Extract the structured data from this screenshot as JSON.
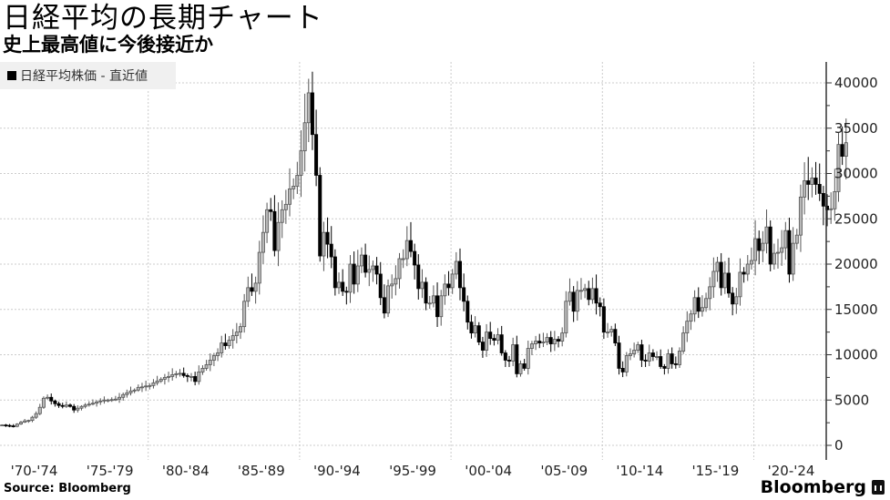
{
  "header": {
    "title": "日経平均の長期チャート",
    "subtitle": "史上最高値に今後接近か"
  },
  "legend": {
    "label": "日経平均株価 - 直近値",
    "swatch_color": "#000000"
  },
  "footer": {
    "source": "Source: Bloomberg",
    "brand": "Bloomberg"
  },
  "colors": {
    "up_fill": "#b8b8b8",
    "up_stroke": "#555555",
    "down_fill": "#000000",
    "grid": "#cccccc",
    "axis": "#333333"
  },
  "chart_data": {
    "type": "candlestick",
    "title": "日経平均の長期チャート",
    "subtitle": "史上最高値に今後接近か",
    "series_name": "日経平均株価 - 直近値",
    "frequency": "quarterly",
    "xlabel": "",
    "ylabel": "",
    "ylim": [
      0,
      40000
    ],
    "yticks": [
      0,
      5000,
      10000,
      15000,
      20000,
      25000,
      30000,
      35000,
      40000
    ],
    "xtick_labels": [
      "'70-'74",
      "'75-'79",
      "'80-'84",
      "'85-'89",
      "'90-'94",
      "'95-'99",
      "'00-'04",
      "'05-'09",
      "'10-'14",
      "'15-'19",
      "'20-'24"
    ],
    "grid": true,
    "legend_position": "top-left",
    "start": "1970Q2",
    "closes": [
      2250,
      2200,
      2150,
      2100,
      2350,
      2550,
      2700,
      2750,
      3100,
      3500,
      4200,
      5200,
      5300,
      4900,
      4600,
      4400,
      4300,
      4450,
      4300,
      3900,
      4100,
      4300,
      4450,
      4550,
      4650,
      4800,
      4900,
      5000,
      5000,
      5050,
      5100,
      5300,
      5600,
      5800,
      6000,
      6100,
      6400,
      6450,
      6550,
      6600,
      6900,
      7100,
      7300,
      7500,
      7600,
      7800,
      7900,
      7950,
      7700,
      7600,
      7600,
      7050,
      8100,
      8500,
      8900,
      9400,
      9900,
      10200,
      11300,
      11000,
      11600,
      12100,
      12500,
      13100,
      15900,
      17400,
      17000,
      17900,
      21300,
      23500,
      26000,
      25800,
      21500,
      24600,
      26000,
      26600,
      28300,
      28600,
      29800,
      32500,
      35600,
      38900,
      34300,
      29800,
      20900,
      23500,
      22200,
      20800,
      17400,
      18000,
      17000,
      16900,
      20000,
      17800,
      19800,
      21000,
      19100,
      19400,
      19800,
      18900,
      16300,
      14600,
      17600,
      17800,
      18400,
      20600,
      20600,
      22600,
      21400,
      19900,
      17300,
      18000,
      15700,
      15700,
      16500,
      14200,
      16500,
      17800,
      17400,
      18900,
      20300,
      17400,
      15900,
      13600,
      12400,
      13200,
      11400,
      10500,
      12500,
      11800,
      11600,
      12200,
      10200,
      9400,
      9300,
      11100,
      7900,
      9000,
      8500,
      10700,
      11200,
      11500,
      11300,
      11400,
      11900,
      11200,
      11700,
      11500,
      12400,
      15900,
      16900,
      14800,
      17100,
      17100,
      17300,
      16100,
      17300,
      15700,
      15300,
      12500,
      12500,
      12800,
      11300,
      8500,
      8100,
      9900,
      10100,
      10500,
      11100,
      9400,
      9300,
      10200,
      9800,
      9800,
      8700,
      8500,
      10100,
      9000,
      8900,
      10400,
      12400,
      13700,
      14500,
      16300,
      14800,
      15200,
      16200,
      17500,
      19200,
      20200,
      17400,
      19000,
      16800,
      15600,
      16400,
      19100,
      18900,
      20000,
      20400,
      22800,
      21500,
      22300,
      24100,
      20000,
      21200,
      21300,
      21800,
      23700,
      18900,
      22300,
      23200,
      27400,
      29200,
      28800,
      29500,
      28800,
      27800,
      26400,
      26000,
      26100,
      28000,
      33200,
      31900,
      33400
    ]
  }
}
